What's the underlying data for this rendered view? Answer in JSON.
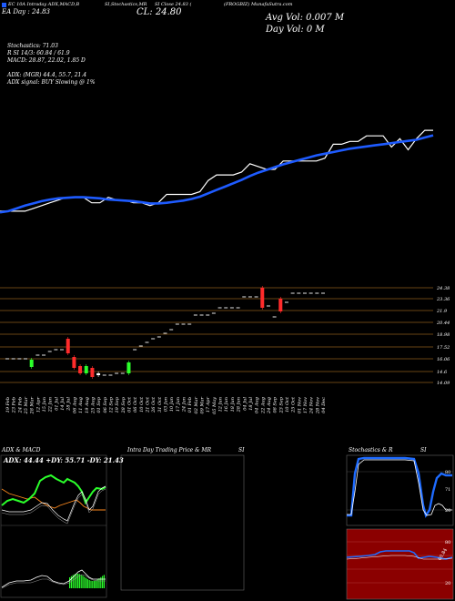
{
  "header": {
    "left_line1": "EC 10A Intraday ADX,MACD,B",
    "left_line2": "EA   Day : 24.83",
    "mid_line1": "SI,Stochastics,MR",
    "mid_line2": "SI Close 24.83 (",
    "mid_line3": "CL: 24.80",
    "right_line1": "(FROGBIZ) MunafaSutra.com",
    "right_line2": "Avg Vol: 0.007 M",
    "right_line3": "Day Vol: 0   M"
  },
  "indicators": {
    "stochastics": "Stochastics: 71.03",
    "rsi": "R         SI 14/3: 60.84  / 61.9",
    "macd": "MACD: 28.87, 22.02, 1.85 D",
    "adx": "ADX:                    (MGR) 44.4, 55.7, 21.4",
    "adx_signal": "ADX  signal:                    BUY Slowing @ 1%"
  },
  "chart_data": [
    {
      "type": "line",
      "series": [
        {
          "color": "#ffffff",
          "values": [
            20,
            20,
            20,
            20,
            20.5,
            21,
            21.5,
            22,
            22.5,
            22.5,
            22.5,
            21.5,
            21.5,
            22.5,
            22,
            22,
            21.5,
            21.5,
            21,
            21.5,
            23,
            23,
            23,
            23,
            23.5,
            25.5,
            26.5,
            26.5,
            26.5,
            27,
            28.5,
            28,
            27.5,
            27.5,
            29,
            29,
            29,
            29,
            29,
            29.5,
            32,
            32,
            32.5,
            32.5,
            33.5,
            33.5,
            33.5,
            31.5,
            33,
            31,
            33,
            34.5,
            34.5
          ]
        },
        {
          "color": "#1e5bff",
          "values": [
            19.8,
            20,
            20.5,
            21,
            21.4,
            21.8,
            22.1,
            22.3,
            22.4,
            22.5,
            22.5,
            22.4,
            22.3,
            22.1,
            22.0,
            21.9,
            21.8,
            21.6,
            21.4,
            21.4,
            21.5,
            21.7,
            21.9,
            22.2,
            22.6,
            23.2,
            23.8,
            24.4,
            25.0,
            25.6,
            26.3,
            26.9,
            27.4,
            27.9,
            28.4,
            28.8,
            29.2,
            29.6,
            30.0,
            30.3,
            30.6,
            30.9,
            31.2,
            31.4,
            31.6,
            31.8,
            32.0,
            32.2,
            32.4,
            32.6,
            32.8,
            33.2,
            33.6
          ]
        }
      ]
    },
    {
      "type": "candlestick",
      "y_ticks": [
        "24.38",
        "23.36",
        "21.9",
        "20.44",
        "18.98",
        "17.52",
        "16.06",
        "14.6",
        "14.09"
      ],
      "categories": [
        "19 Feb",
        "23 Feb",
        "24 Feb",
        "25 Mar",
        "28 Mar",
        "12 Apr",
        "15 Jun",
        "22 Jun",
        "01 Jul",
        "14 Jul",
        "28 Jul",
        "06 Aug",
        "11 Aug",
        "19 Aug",
        "25 Aug",
        "01 Sep",
        "06 Sep",
        "12 Sep",
        "19 Sep",
        "28 Sep",
        "01 Oct",
        "06 Oct",
        "10 Oct",
        "21 Oct",
        "26 Oct",
        "31 Oct",
        "03 Jan",
        "10 Jan",
        "17 Jan",
        "24 Jan",
        "01 Feb",
        "02 Mar",
        "09 Mar",
        "17 Apr",
        "05 May",
        "12 Jun",
        "16 Jun",
        "18 Jun",
        "28 Jun",
        "04 Jul",
        "18 Jul",
        "04 Aug",
        "22 Aug",
        "24 Aug",
        "08 Sep",
        "23 Sep",
        "10 Oct",
        "25 Oct",
        "01 Nov",
        "17 Nov",
        "24 Nov",
        "28 Nov",
        "04 Dec"
      ]
    }
  ],
  "panels": {
    "adx_title": "ADX  & MACD",
    "adx_values": "ADX: 44.44  +DY: 55.71 -DY: 21.43",
    "intra_title": "Intra  Day Trading Price  & MR",
    "intra_title2": "SI",
    "stoch_title": "Stochastics & R",
    "stoch_title2": "SI",
    "stoch_levels": [
      "80",
      "71",
      "20"
    ],
    "rsi_levels": [
      "80",
      "60.84",
      "20"
    ]
  }
}
